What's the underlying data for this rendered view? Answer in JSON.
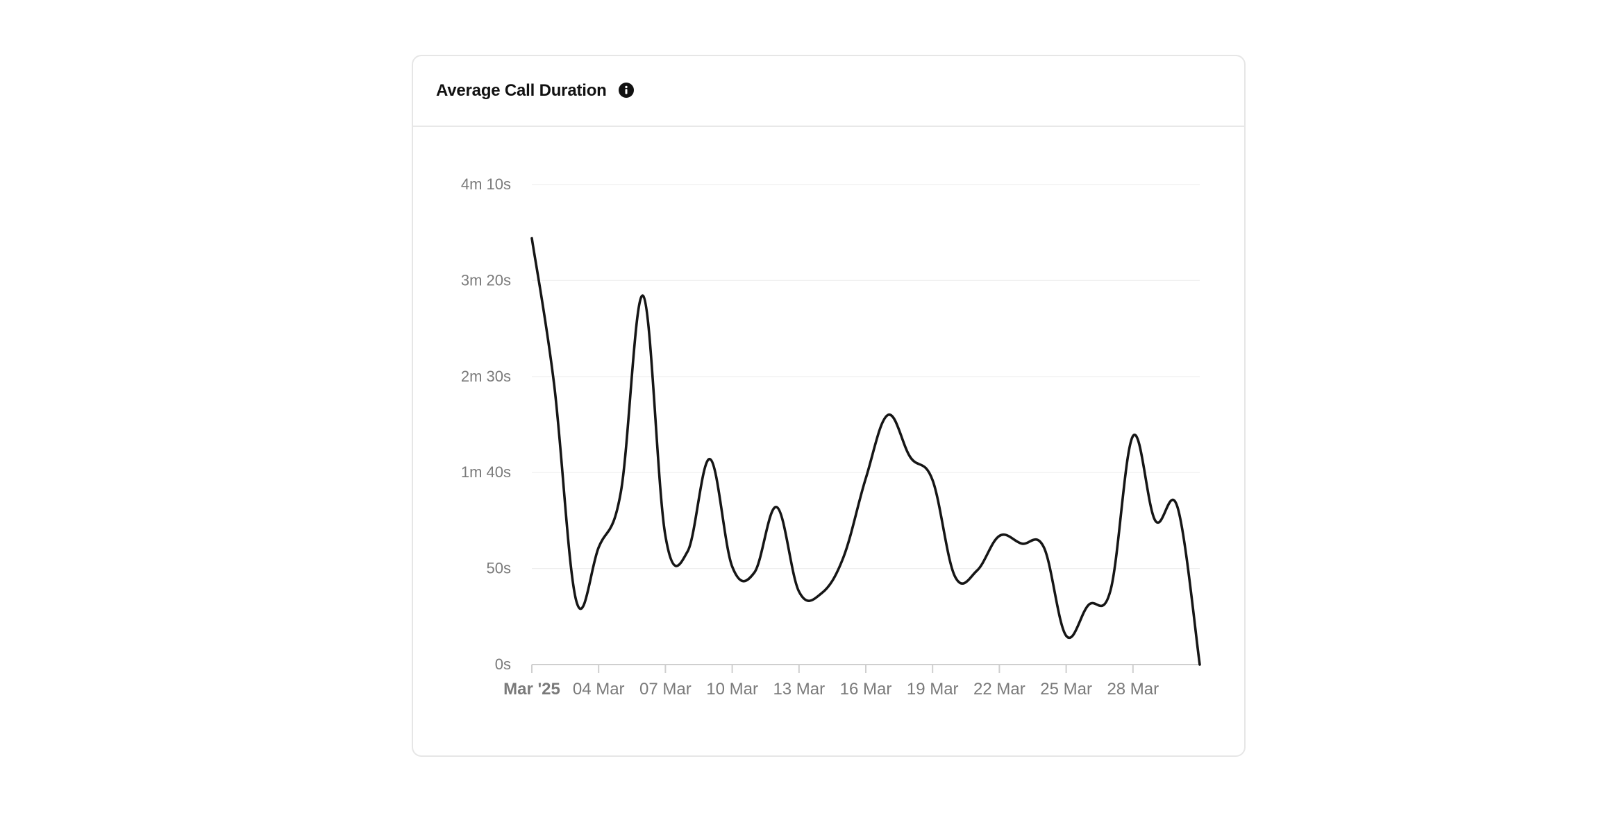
{
  "card": {
    "title": "Average Call Duration",
    "info_icon": "info-icon"
  },
  "colors": {
    "line": "#161616",
    "grid": "#efefef",
    "axis": "#cfcfcf",
    "tick_label": "#7a7a7a"
  },
  "chart_data": {
    "type": "line",
    "title": "Average Call Duration",
    "xlabel": "",
    "ylabel": "",
    "x_tick_labels": [
      "Mar '25",
      "04 Mar",
      "07 Mar",
      "10 Mar",
      "13 Mar",
      "16 Mar",
      "19 Mar",
      "22 Mar",
      "25 Mar",
      "28 Mar"
    ],
    "y_tick_labels": [
      "0s",
      "50s",
      "1m 40s",
      "2m 30s",
      "3m 20s",
      "4m 10s"
    ],
    "y_tick_values": [
      0,
      50,
      100,
      150,
      200,
      250
    ],
    "ylim": [
      0,
      250
    ],
    "xlim": [
      "2025-03-01",
      "2025-03-31"
    ],
    "grid": true,
    "legend": "none",
    "series": [
      {
        "x": [
          "2025-03-01",
          "2025-03-02",
          "2025-03-03",
          "2025-03-04",
          "2025-03-05",
          "2025-03-06",
          "2025-03-07",
          "2025-03-08",
          "2025-03-09",
          "2025-03-10",
          "2025-03-11",
          "2025-03-12",
          "2025-03-13",
          "2025-03-14",
          "2025-03-15",
          "2025-03-16",
          "2025-03-17",
          "2025-03-18",
          "2025-03-19",
          "2025-03-20",
          "2025-03-21",
          "2025-03-22",
          "2025-03-23",
          "2025-03-24",
          "2025-03-25",
          "2025-03-26",
          "2025-03-27",
          "2025-03-28",
          "2025-03-29",
          "2025-03-30",
          "2025-03-31"
        ],
        "values": [
          222,
          146,
          33,
          61,
          90,
          192,
          67,
          59,
          107,
          51,
          48,
          82,
          38,
          37,
          56,
          97,
          130,
          108,
          96,
          46,
          49,
          67,
          63,
          61,
          15,
          31,
          39,
          119,
          75,
          82,
          0
        ]
      }
    ]
  }
}
